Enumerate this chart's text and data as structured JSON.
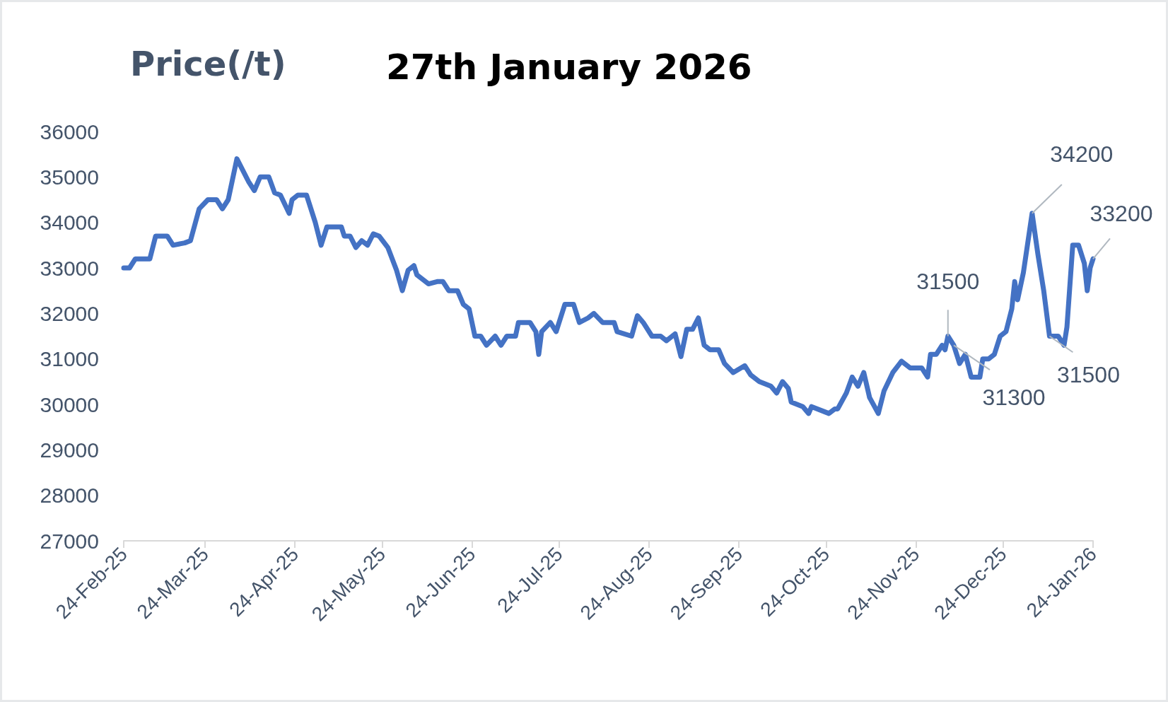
{
  "chart_data": {
    "type": "line",
    "title": "27th January 2026",
    "ylabel": "Price(/t)",
    "x": [
      "2025-02-24",
      "2025-02-26",
      "2025-02-28",
      "2025-03-05",
      "2025-03-07",
      "2025-03-11",
      "2025-03-13",
      "2025-03-17",
      "2025-03-19",
      "2025-03-22",
      "2025-03-25",
      "2025-03-28",
      "2025-03-30",
      "2025-04-01",
      "2025-04-04",
      "2025-04-08",
      "2025-04-10",
      "2025-04-12",
      "2025-04-15",
      "2025-04-17",
      "2025-04-19",
      "2025-04-22",
      "2025-04-23",
      "2025-04-25",
      "2025-04-28",
      "2025-05-01",
      "2025-05-03",
      "2025-05-05",
      "2025-05-10",
      "2025-05-11",
      "2025-05-13",
      "2025-05-15",
      "2025-05-17",
      "2025-05-19",
      "2025-05-21",
      "2025-05-23",
      "2025-05-26",
      "2025-05-29",
      "2025-05-31",
      "2025-06-02",
      "2025-06-04",
      "2025-06-05",
      "2025-06-09",
      "2025-06-12",
      "2025-06-14",
      "2025-06-16",
      "2025-06-19",
      "2025-06-21",
      "2025-06-23",
      "2025-06-25",
      "2025-06-27",
      "2025-06-29",
      "2025-07-02",
      "2025-07-04",
      "2025-07-06",
      "2025-07-09",
      "2025-07-10",
      "2025-07-14",
      "2025-07-16",
      "2025-07-17",
      "2025-07-18",
      "2025-07-21",
      "2025-07-23",
      "2025-07-26",
      "2025-07-29",
      "2025-07-31",
      "2025-08-03",
      "2025-08-05",
      "2025-08-08",
      "2025-08-12",
      "2025-08-13",
      "2025-08-18",
      "2025-08-20",
      "2025-08-22",
      "2025-08-25",
      "2025-08-28",
      "2025-08-30",
      "2025-09-02",
      "2025-09-04",
      "2025-09-06",
      "2025-09-08",
      "2025-09-10",
      "2025-09-12",
      "2025-09-14",
      "2025-09-17",
      "2025-09-19",
      "2025-09-22",
      "2025-09-26",
      "2025-09-28",
      "2025-10-01",
      "2025-10-05",
      "2025-10-07",
      "2025-10-09",
      "2025-10-11",
      "2025-10-12",
      "2025-10-16",
      "2025-10-18",
      "2025-10-19",
      "2025-10-25",
      "2025-10-27",
      "2025-10-28",
      "2025-10-31",
      "2025-11-02",
      "2025-11-04",
      "2025-11-06",
      "2025-11-08",
      "2025-11-11",
      "2025-11-13",
      "2025-11-16",
      "2025-11-19",
      "2025-11-22",
      "2025-11-26",
      "2025-11-28",
      "2025-11-29",
      "2025-12-01",
      "2025-12-03",
      "2025-12-04",
      "2025-12-05",
      "2025-12-07",
      "2025-12-09",
      "2025-12-11",
      "2025-12-13",
      "2025-12-16",
      "2025-12-17",
      "2025-12-19",
      "2025-12-21",
      "2025-12-23",
      "2025-12-25",
      "2025-12-27",
      "2025-12-28",
      "2025-12-29",
      "2025-12-31",
      "2026-01-03",
      "2026-01-05",
      "2026-01-07",
      "2026-01-09",
      "2026-01-12",
      "2026-01-14",
      "2026-01-15",
      "2026-01-17",
      "2026-01-19",
      "2026-01-21",
      "2026-01-22",
      "2026-01-23",
      "2026-01-24"
    ],
    "series": [
      {
        "color": "#4472c4",
        "values": [
          33000,
          33000,
          33200,
          33200,
          33700,
          33700,
          33500,
          33550,
          33600,
          34300,
          34500,
          34500,
          34300,
          34500,
          35400,
          34900,
          34700,
          35000,
          35000,
          34650,
          34600,
          34200,
          34500,
          34600,
          34600,
          34000,
          33500,
          33900,
          33900,
          33700,
          33700,
          33450,
          33600,
          33500,
          33750,
          33700,
          33450,
          32950,
          32500,
          32950,
          33050,
          32850,
          32650,
          32700,
          32700,
          32500,
          32500,
          32200,
          32100,
          31500,
          31500,
          31300,
          31500,
          31300,
          31500,
          31500,
          31800,
          31800,
          31600,
          31100,
          31600,
          31800,
          31600,
          32200,
          32200,
          31800,
          31900,
          32000,
          31800,
          31800,
          31600,
          31500,
          31950,
          31800,
          31500,
          31500,
          31400,
          31550,
          31050,
          31650,
          31650,
          31900,
          31300,
          31200,
          31200,
          30900,
          30700,
          30850,
          30650,
          30500,
          30400,
          30250,
          30500,
          30350,
          30050,
          29950,
          29800,
          29950,
          29800,
          29900,
          29900,
          30250,
          30600,
          30400,
          30700,
          30150,
          29800,
          30300,
          30700,
          30950,
          30800,
          30800,
          30600,
          31100,
          31100,
          31300,
          31200,
          31500,
          31300,
          30900,
          31100,
          30600,
          30600,
          31000,
          31000,
          31100,
          31500,
          31600,
          32100,
          32700,
          32300,
          32900,
          34200,
          33300,
          32500,
          31500,
          31500,
          31300,
          31700,
          33500,
          33500,
          33100,
          32500,
          33000,
          33200
        ]
      }
    ],
    "xlim": [
      "2025-02-24",
      "2026-01-24"
    ],
    "xticks": [
      {
        "value": "2025-02-24",
        "label": "24-Feb-25"
      },
      {
        "value": "2025-03-24",
        "label": "24-Mar-25"
      },
      {
        "value": "2025-04-24",
        "label": "24-Apr-25"
      },
      {
        "value": "2025-05-24",
        "label": "24-May-25"
      },
      {
        "value": "2025-06-24",
        "label": "24-Jun-25"
      },
      {
        "value": "2025-07-24",
        "label": "24-Jul-25"
      },
      {
        "value": "2025-08-24",
        "label": "24-Aug-25"
      },
      {
        "value": "2025-09-24",
        "label": "24-Sep-25"
      },
      {
        "value": "2025-10-24",
        "label": "24-Oct-25"
      },
      {
        "value": "2025-11-24",
        "label": "24-Nov-25"
      },
      {
        "value": "2025-12-24",
        "label": "24-Dec-25"
      },
      {
        "value": "2026-01-24",
        "label": "24-Jan-26"
      }
    ],
    "ylim": [
      27000,
      36000
    ],
    "yticks": [
      27000,
      28000,
      29000,
      30000,
      31000,
      32000,
      33000,
      34000,
      35000,
      36000
    ],
    "grid": false,
    "marker": "none",
    "line_style": "solid",
    "annotations": [
      {
        "text": "31500",
        "x": "2025-12-05",
        "y": 31500
      },
      {
        "text": "31300",
        "x": "2025-12-07",
        "y": 31300
      },
      {
        "text": "34200",
        "x": "2026-01-03",
        "y": 34200
      },
      {
        "text": "31500",
        "x": "2026-01-09",
        "y": 31500
      },
      {
        "text": "33200",
        "x": "2026-01-24",
        "y": 33200
      }
    ]
  }
}
